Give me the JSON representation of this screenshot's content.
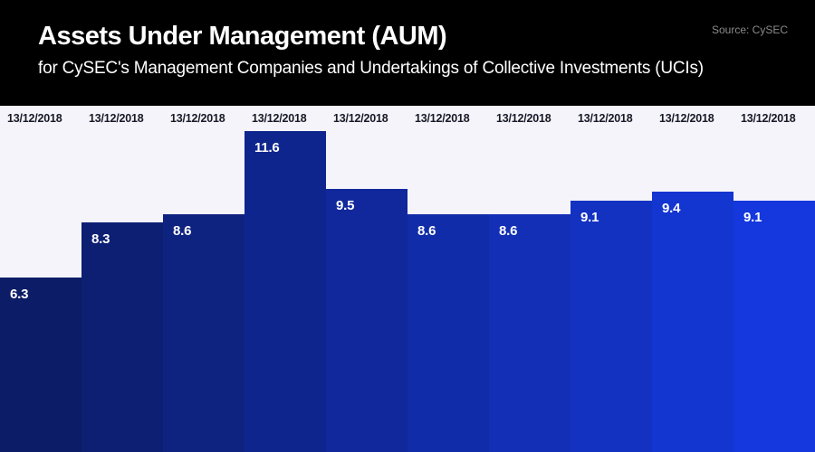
{
  "header": {
    "title": "Assets Under Management (AUM)",
    "subtitle": "for CySEC's Management Companies and Undertakings of Collective Investments (UCIs)",
    "source": "Source: CySEC"
  },
  "chart_data": {
    "type": "bar",
    "title": "Assets Under Management (AUM)",
    "subtitle": "for CySEC's Management Companies and Undertakings of Collective Investments (UCIs)",
    "source": "Source: CySEC",
    "categories": [
      "13/12/2018",
      "13/12/2018",
      "13/12/2018",
      "13/12/2018",
      "13/12/2018",
      "13/12/2018",
      "13/12/2018",
      "13/12/2018",
      "13/12/2018",
      "13/12/2018"
    ],
    "values": [
      6.3,
      8.3,
      8.6,
      11.6,
      9.5,
      8.6,
      8.6,
      9.1,
      9.4,
      9.1
    ],
    "value_labels": [
      "6.3",
      "8.3",
      "8.6",
      "11.6",
      "9.5",
      "8.6",
      "8.6",
      "9.1",
      "9.4",
      "9.1"
    ],
    "bar_colors": [
      "#0c1c66",
      "#0d1f73",
      "#0e2280",
      "#0f258e",
      "#10289b",
      "#112ca8",
      "#122fb5",
      "#1332c2",
      "#1335d0",
      "#1438dd"
    ],
    "xlabel": "",
    "ylabel": "",
    "ylim": [
      0,
      12.5
    ],
    "grid": false,
    "legend": false,
    "category_label_position": "top",
    "value_label_position": "inside-top-left"
  },
  "colors": {
    "header_background": "#000000",
    "header_text": "#ffffff",
    "source_text": "#8b8b8b",
    "chart_background": "#f4f4fa",
    "date_label_text": "#191927",
    "value_label_text": "#ffffff"
  }
}
